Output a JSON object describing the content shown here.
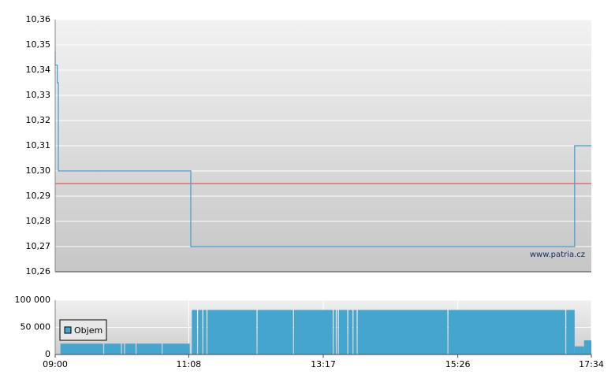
{
  "chart_data": [
    {
      "type": "line",
      "step": true,
      "x": [
        "09:00",
        "09:02",
        "09:03",
        "11:10",
        "17:18",
        "17:27",
        "17:34"
      ],
      "values": [
        10.3475,
        10.342,
        10.335,
        10.3,
        10.27,
        10.31,
        10.31
      ],
      "color": "#4aa3d0",
      "xlim": [
        "09:00",
        "17:34"
      ],
      "ylim": [
        10.26,
        10.36
      ],
      "yticks": [
        {
          "value": 10.26,
          "label": "10,26"
        },
        {
          "value": 10.27,
          "label": "10,27"
        },
        {
          "value": 10.28,
          "label": "10,28"
        },
        {
          "value": 10.29,
          "label": "10,29"
        },
        {
          "value": 10.3,
          "label": "10,30"
        },
        {
          "value": 10.31,
          "label": "10,31"
        },
        {
          "value": 10.32,
          "label": "10,32"
        },
        {
          "value": 10.33,
          "label": "10,33"
        },
        {
          "value": 10.34,
          "label": "10,34"
        },
        {
          "value": 10.35,
          "label": "10,35"
        },
        {
          "value": 10.36,
          "label": "10,36"
        }
      ],
      "reference_line": {
        "value": 10.295,
        "color": "#e03a3a"
      },
      "watermark": "www.patria.cz",
      "grid": true
    },
    {
      "type": "histogram",
      "name": "Objem",
      "color": "#45a5cf",
      "bins": [
        "09:05",
        "09:46",
        "09:47",
        "10:03",
        "10:04",
        "10:06",
        "10:07",
        "10:17",
        "10:18",
        "10:42",
        "10:43",
        "11:09",
        "11:11",
        "11:16",
        "11:17",
        "11:21",
        "11:22",
        "11:25",
        "11:26",
        "12:13",
        "12:14",
        "12:48",
        "12:49",
        "13:26",
        "13:27",
        "13:29",
        "13:30",
        "13:31",
        "13:32",
        "13:40",
        "13:41",
        "13:45",
        "13:46",
        "13:49",
        "13:50",
        "15:16",
        "15:17",
        "17:09",
        "17:10",
        "17:18",
        "17:27",
        "17:34"
      ],
      "values": [
        20000,
        0,
        20000,
        0,
        20000,
        0,
        20000,
        0,
        20000,
        0,
        20000,
        0,
        82000,
        0,
        82000,
        0,
        82000,
        0,
        82000,
        0,
        82000,
        0,
        82000,
        0,
        82000,
        0,
        82000,
        0,
        82000,
        0,
        82000,
        0,
        82000,
        0,
        82000,
        0,
        82000,
        0,
        82000,
        15000,
        26000
      ],
      "xlim": [
        "09:00",
        "17:34"
      ],
      "xticks": [
        "09:00",
        "11:08",
        "13:17",
        "15:26",
        "17:34"
      ],
      "ylim": [
        0,
        100000
      ],
      "yticks": [
        0,
        {
          "value": 50000,
          "label": "50 000"
        },
        {
          "value": 100000,
          "label": "100 000"
        }
      ],
      "grid": true
    }
  ]
}
